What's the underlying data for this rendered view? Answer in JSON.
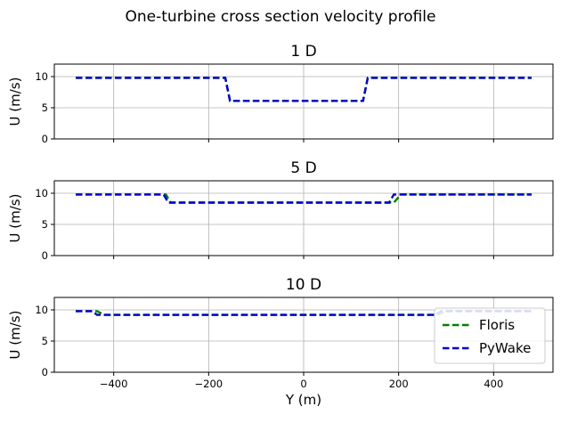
{
  "figure": {
    "title": "One-turbine cross section velocity profile"
  },
  "legend": {
    "placement": "lower-right",
    "entries": [
      {
        "name": "Floris",
        "color": "#008000"
      },
      {
        "name": "PyWake",
        "color": "#0000cc"
      }
    ]
  },
  "chart_data": [
    {
      "type": "line",
      "title": "1 D",
      "xlabel": "",
      "ylabel": "U (m/s)",
      "xlim": [
        -525,
        525
      ],
      "ylim": [
        0,
        12
      ],
      "xticks": [
        -400,
        -200,
        0,
        200,
        400
      ],
      "xtick_labels_visible": false,
      "yticks": [
        0,
        5,
        10
      ],
      "grid": true,
      "series": [
        {
          "name": "Floris",
          "color": "#008000",
          "style": "dashed",
          "x": [
            -480,
            -165,
            -155,
            125,
            135,
            480
          ],
          "y": [
            9.8,
            9.8,
            6.1,
            6.1,
            9.8,
            9.8
          ]
        },
        {
          "name": "PyWake",
          "color": "#0000cc",
          "style": "dashed",
          "x": [
            -480,
            -165,
            -155,
            125,
            135,
            480
          ],
          "y": [
            9.8,
            9.8,
            6.1,
            6.1,
            9.8,
            9.8
          ]
        }
      ]
    },
    {
      "type": "line",
      "title": "5 D",
      "xlabel": "",
      "ylabel": "U (m/s)",
      "xlim": [
        -525,
        525
      ],
      "ylim": [
        0,
        12
      ],
      "xticks": [
        -400,
        -200,
        0,
        200,
        400
      ],
      "xtick_labels_visible": false,
      "yticks": [
        0,
        5,
        10
      ],
      "grid": true,
      "series": [
        {
          "name": "Floris",
          "color": "#008000",
          "style": "dashed",
          "x": [
            -480,
            -290,
            -280,
            190,
            205,
            480
          ],
          "y": [
            9.8,
            9.8,
            8.5,
            8.5,
            9.8,
            9.8
          ]
        },
        {
          "name": "PyWake",
          "color": "#0000cc",
          "style": "dashed",
          "x": [
            -480,
            -295,
            -285,
            180,
            190,
            480
          ],
          "y": [
            9.8,
            9.8,
            8.5,
            8.5,
            9.8,
            9.8
          ]
        }
      ]
    },
    {
      "type": "line",
      "title": "10 D",
      "xlabel": "Y (m)",
      "ylabel": "U (m/s)",
      "xlim": [
        -525,
        525
      ],
      "ylim": [
        0,
        12
      ],
      "xticks": [
        -400,
        -200,
        0,
        200,
        400
      ],
      "xtick_labels_visible": true,
      "yticks": [
        0,
        5,
        10
      ],
      "grid": true,
      "series": [
        {
          "name": "Floris",
          "color": "#008000",
          "style": "dashed",
          "x": [
            -480,
            -435,
            -420,
            280,
            300,
            480
          ],
          "y": [
            9.8,
            9.8,
            9.2,
            9.2,
            9.8,
            9.8
          ]
        },
        {
          "name": "PyWake",
          "color": "#0000cc",
          "style": "dashed",
          "x": [
            -480,
            -445,
            -435,
            275,
            290,
            480
          ],
          "y": [
            9.8,
            9.8,
            9.2,
            9.2,
            9.8,
            9.8
          ]
        }
      ]
    }
  ]
}
